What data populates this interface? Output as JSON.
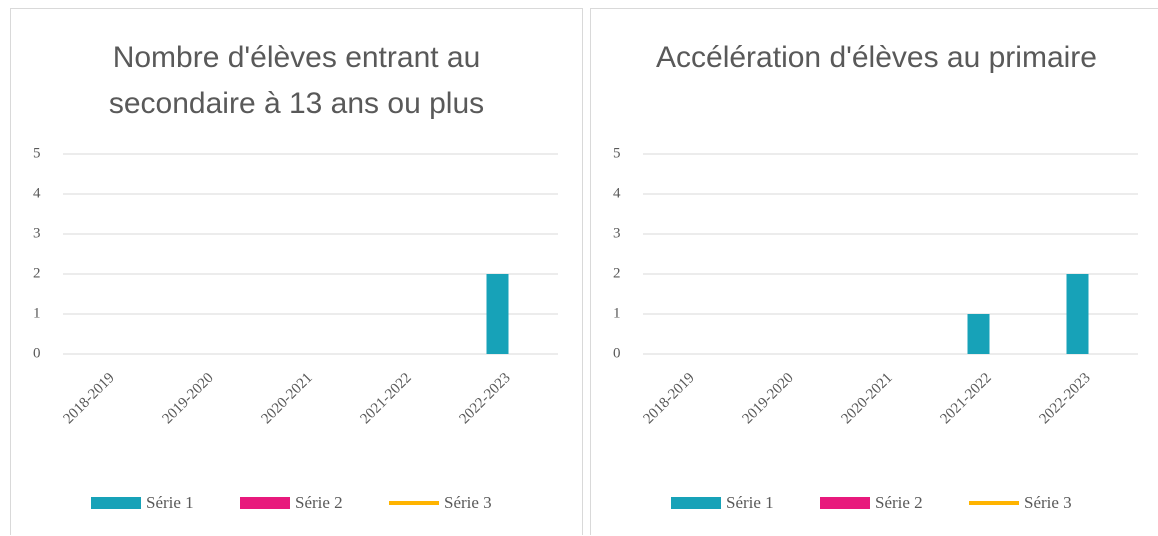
{
  "chart_data": [
    {
      "type": "bar",
      "title": "Nombre d'élèves entrant au secondaire à 13 ans ou plus",
      "categories": [
        "2018-2019",
        "2019-2020",
        "2020-2021",
        "2021-2022",
        "2022-2023"
      ],
      "series": [
        {
          "name": "Série 1",
          "color": "#17a2b8",
          "values": [
            0,
            0,
            0,
            0,
            2
          ]
        },
        {
          "name": "Série 2",
          "color": "#e8197c",
          "values": [
            null,
            null,
            null,
            null,
            null
          ]
        },
        {
          "name": "Série 3",
          "color": "#ffb400",
          "type": "line",
          "values": [
            null,
            null,
            null,
            null,
            null
          ]
        }
      ],
      "ylim": [
        0,
        5
      ],
      "yticks": [
        0,
        1,
        2,
        3,
        4,
        5
      ],
      "grid": true,
      "legend": "bottom"
    },
    {
      "type": "bar",
      "title": "Accélération d'élèves au primaire",
      "categories": [
        "2018-2019",
        "2019-2020",
        "2020-2021",
        "2021-2022",
        "2022-2023"
      ],
      "series": [
        {
          "name": "Série 1",
          "color": "#17a2b8",
          "values": [
            0,
            0,
            0,
            1,
            2
          ]
        },
        {
          "name": "Série 2",
          "color": "#e8197c",
          "values": [
            null,
            null,
            null,
            null,
            null
          ]
        },
        {
          "name": "Série 3",
          "color": "#ffb400",
          "type": "line",
          "values": [
            null,
            null,
            null,
            null,
            null
          ]
        }
      ],
      "ylim": [
        0,
        5
      ],
      "yticks": [
        0,
        1,
        2,
        3,
        4,
        5
      ],
      "grid": true,
      "legend": "bottom"
    }
  ]
}
